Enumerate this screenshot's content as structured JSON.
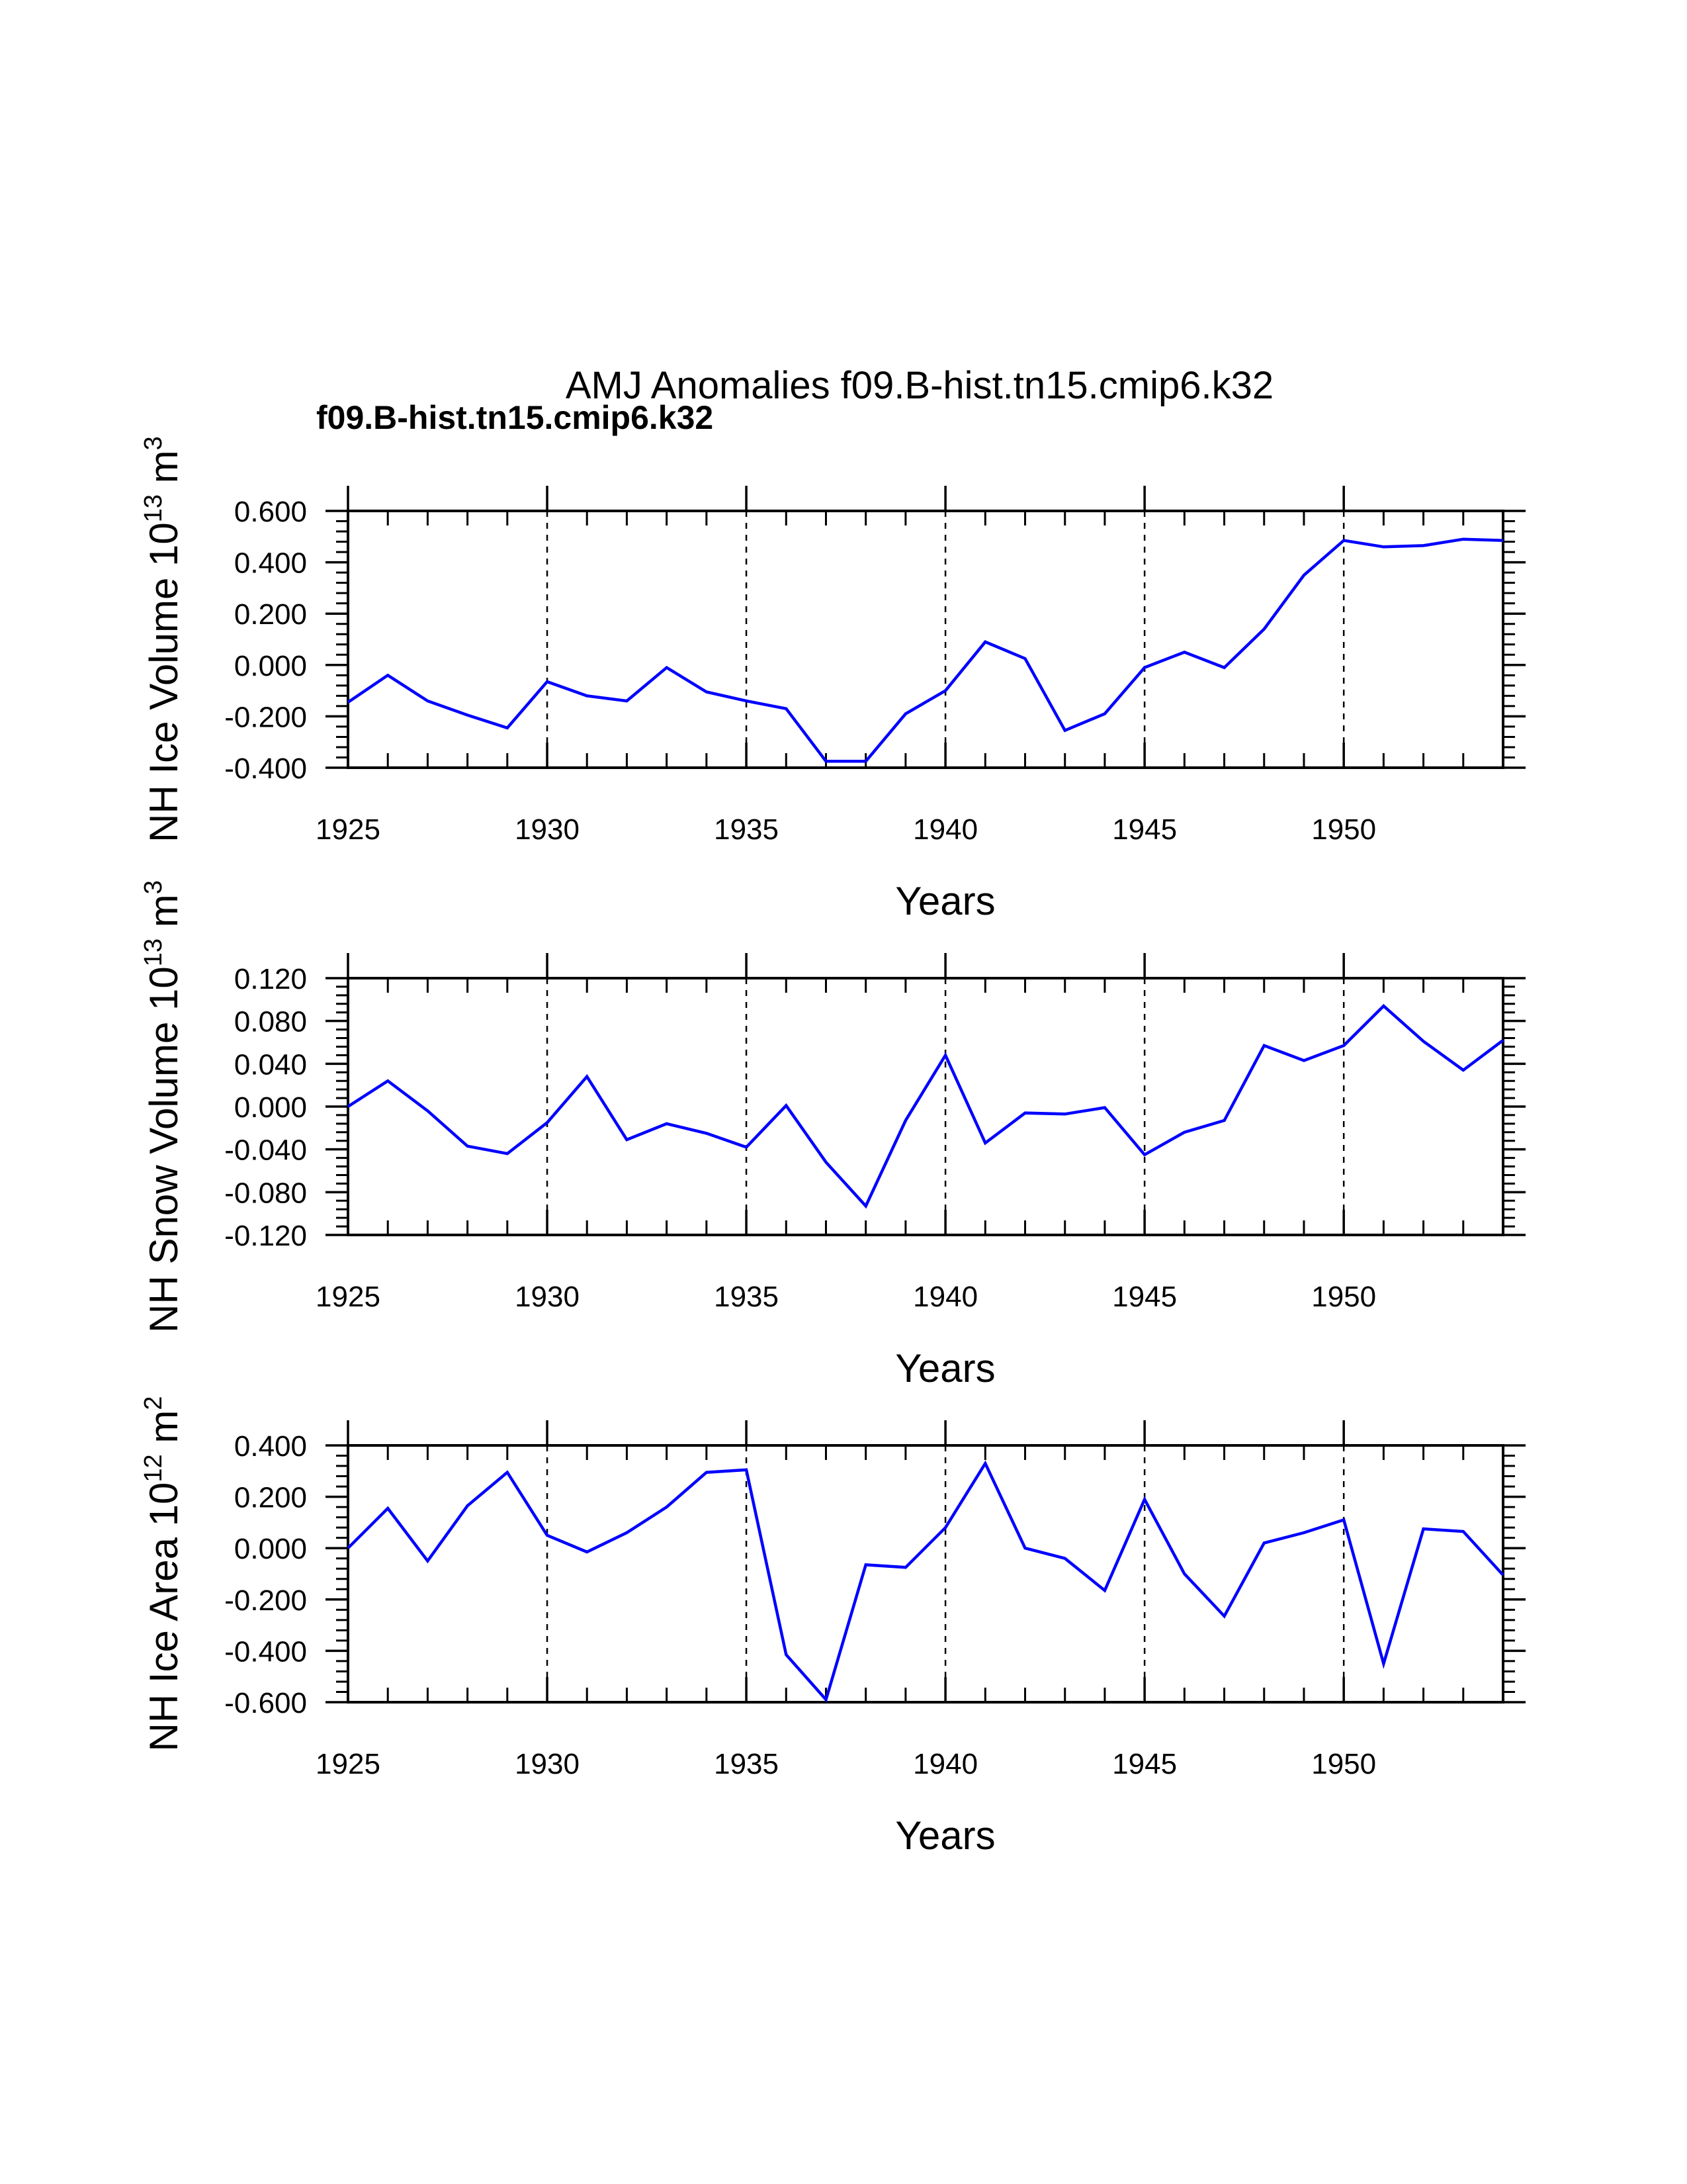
{
  "title": "AMJ Anomalies f09.B-hist.tn15.cmip6.k32",
  "subtitle": "f09.B-hist.tn15.cmip6.k32",
  "subtitle_color": "#0000ff",
  "chart_data": [
    {
      "type": "line",
      "ylabel": "NH Ice Volume 10",
      "ylabel_exp": "13",
      "ylabel_unit": "m",
      "ylabel_unit_exp": "3",
      "xlabel": "Years",
      "xlim": [
        1925,
        1954
      ],
      "ylim": [
        -0.4,
        0.6
      ],
      "yticks": [
        0.6,
        0.4,
        0.2,
        0.0,
        -0.2,
        -0.4
      ],
      "ytick_labels": [
        "0.600",
        "0.400",
        "0.200",
        "0.000",
        "-0.200",
        "-0.400"
      ],
      "xticks": [
        1925,
        1930,
        1935,
        1940,
        1945,
        1950
      ],
      "xtick_labels": [
        "1925",
        "1930",
        "1935",
        "1940",
        "1945",
        "1950"
      ],
      "grid": "vertical dashed at 1930, 1935, 1940, 1945, 1950",
      "series": [
        {
          "name": "f09.B-hist.tn15.cmip6.k32",
          "color": "#0000ff",
          "x": [
            1925,
            1926,
            1927,
            1928,
            1929,
            1930,
            1931,
            1932,
            1933,
            1934,
            1935,
            1936,
            1937,
            1938,
            1939,
            1940,
            1941,
            1942,
            1943,
            1944,
            1945,
            1946,
            1947,
            1948,
            1949,
            1950,
            1951,
            1952,
            1953,
            1954
          ],
          "values": [
            -0.145,
            -0.04,
            -0.14,
            -0.195,
            -0.245,
            -0.065,
            -0.12,
            -0.14,
            -0.01,
            -0.105,
            -0.14,
            -0.17,
            -0.375,
            -0.375,
            -0.19,
            -0.1,
            0.09,
            0.025,
            -0.255,
            -0.19,
            -0.01,
            0.05,
            -0.01,
            0.14,
            0.35,
            0.485,
            0.46,
            0.465,
            0.49,
            0.485
          ]
        }
      ]
    },
    {
      "type": "line",
      "ylabel": "NH Snow Volume 10",
      "ylabel_exp": "13",
      "ylabel_unit": "m",
      "ylabel_unit_exp": "3",
      "xlabel": "Years",
      "xlim": [
        1925,
        1954
      ],
      "ylim": [
        -0.12,
        0.12
      ],
      "yticks": [
        0.12,
        0.08,
        0.04,
        0.0,
        -0.04,
        -0.08,
        -0.12
      ],
      "ytick_labels": [
        "0.120",
        "0.080",
        "0.040",
        "0.000",
        "-0.040",
        "-0.080",
        "-0.120"
      ],
      "xticks": [
        1925,
        1930,
        1935,
        1940,
        1945,
        1950
      ],
      "xtick_labels": [
        "1925",
        "1930",
        "1935",
        "1940",
        "1945",
        "1950"
      ],
      "grid": "vertical dashed at 1930, 1935, 1940, 1945, 1950",
      "series": [
        {
          "name": "f09.B-hist.tn15.cmip6.k32",
          "color": "#0000ff",
          "x": [
            1925,
            1926,
            1927,
            1928,
            1929,
            1930,
            1931,
            1932,
            1933,
            1934,
            1935,
            1936,
            1937,
            1938,
            1939,
            1940,
            1941,
            1942,
            1943,
            1944,
            1945,
            1946,
            1947,
            1948,
            1949,
            1950,
            1951,
            1952,
            1953,
            1954
          ],
          "values": [
            0.0,
            0.024,
            -0.004,
            -0.037,
            -0.044,
            -0.015,
            0.028,
            -0.031,
            -0.016,
            -0.025,
            -0.038,
            0.001,
            -0.052,
            -0.093,
            -0.013,
            0.048,
            -0.034,
            -0.006,
            -0.007,
            -0.001,
            -0.045,
            -0.024,
            -0.013,
            0.057,
            0.043,
            0.057,
            0.094,
            0.061,
            0.034,
            0.062
          ]
        }
      ]
    },
    {
      "type": "line",
      "ylabel": "NH Ice Area 10",
      "ylabel_exp": "12",
      "ylabel_unit": "m",
      "ylabel_unit_exp": "2",
      "xlabel": "Years",
      "xlim": [
        1925,
        1954
      ],
      "ylim": [
        -0.6,
        0.4
      ],
      "yticks": [
        0.4,
        0.2,
        0.0,
        -0.2,
        -0.4,
        -0.6
      ],
      "ytick_labels": [
        "0.400",
        "0.200",
        "0.000",
        "-0.200",
        "-0.400",
        "-0.600"
      ],
      "xticks": [
        1925,
        1930,
        1935,
        1940,
        1945,
        1950
      ],
      "xtick_labels": [
        "1925",
        "1930",
        "1935",
        "1940",
        "1945",
        "1950"
      ],
      "grid": "vertical dashed at 1930, 1935, 1940, 1945, 1950",
      "series": [
        {
          "name": "f09.B-hist.tn15.cmip6.k32",
          "color": "#0000ff",
          "x": [
            1925,
            1926,
            1927,
            1928,
            1929,
            1930,
            1931,
            1932,
            1933,
            1934,
            1935,
            1936,
            1937,
            1938,
            1939,
            1940,
            1941,
            1942,
            1943,
            1944,
            1945,
            1946,
            1947,
            1948,
            1949,
            1950,
            1951,
            1952,
            1953,
            1954
          ],
          "values": [
            0.0,
            0.155,
            -0.05,
            0.165,
            0.295,
            0.05,
            -0.015,
            0.06,
            0.16,
            0.295,
            0.305,
            -0.415,
            -0.59,
            -0.065,
            -0.075,
            0.08,
            0.33,
            0.0,
            -0.04,
            -0.165,
            0.19,
            -0.1,
            -0.265,
            0.02,
            0.06,
            0.11,
            -0.45,
            0.075,
            0.065,
            -0.105
          ]
        }
      ]
    }
  ]
}
